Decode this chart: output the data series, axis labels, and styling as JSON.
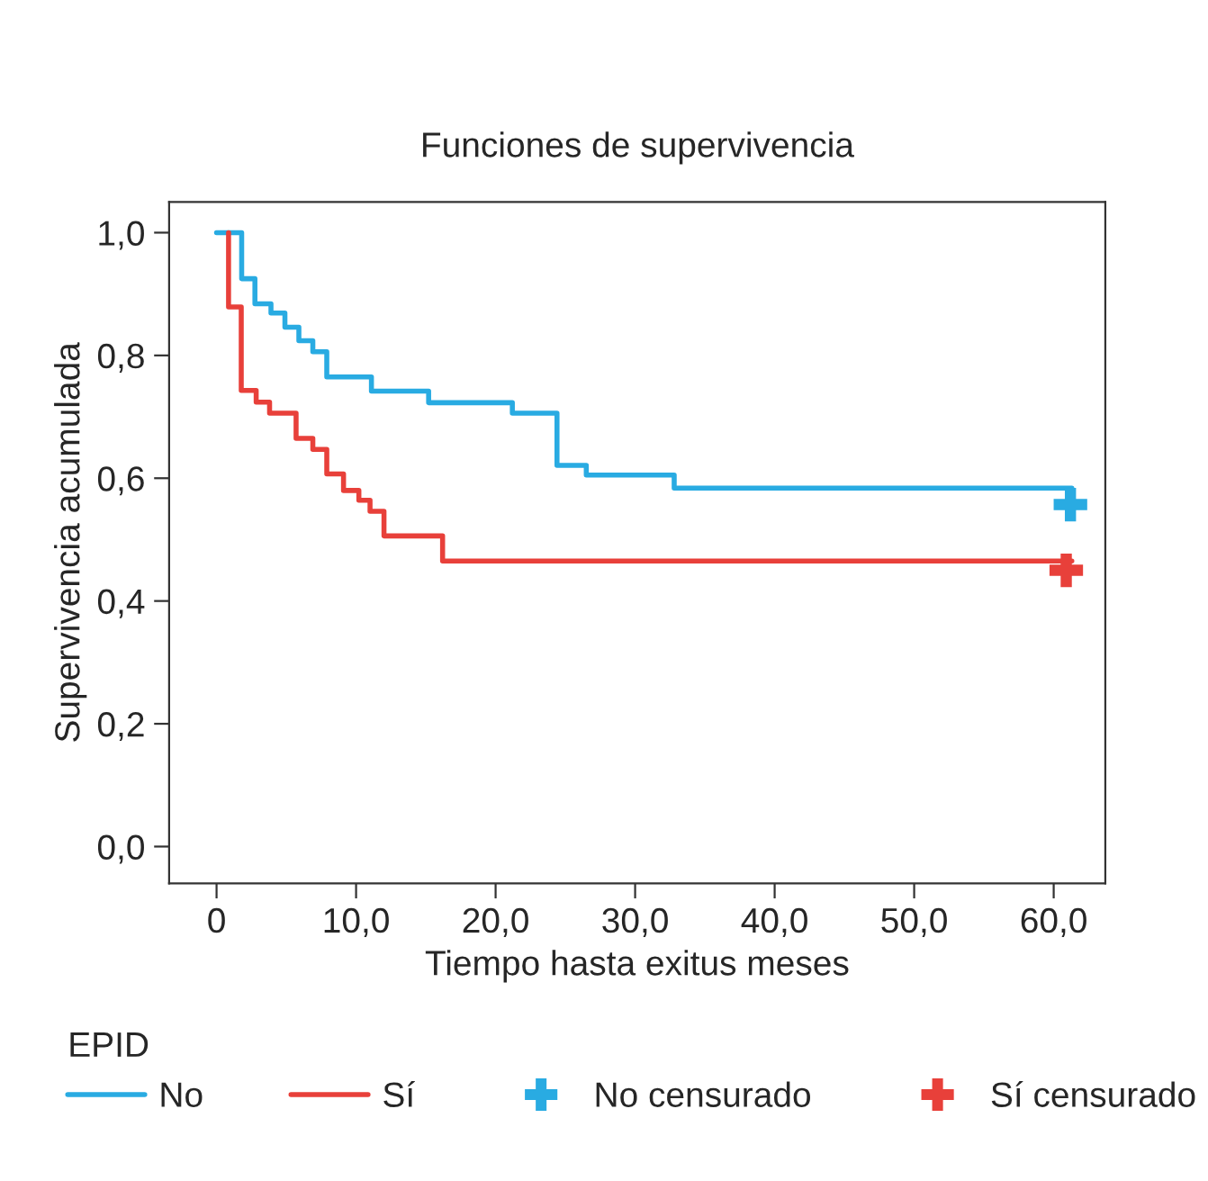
{
  "chart_data": {
    "type": "step",
    "title": "Funciones de supervivencia",
    "xlabel": "Tiempo hasta exitus meses",
    "ylabel": "Supervivencia acumulada",
    "legend_title": "EPID",
    "legend": "bottom",
    "grid": false,
    "xlim": [
      -3.4,
      63.7
    ],
    "ylim": [
      -0.06,
      1.05
    ],
    "xticks": [
      0,
      {
        "value": 10,
        "label": "10,0"
      },
      {
        "value": 20,
        "label": "20,0"
      },
      {
        "value": 30,
        "label": "30,0"
      },
      {
        "value": 40,
        "label": "40,0"
      },
      {
        "value": 50,
        "label": "50,0"
      },
      {
        "value": 60,
        "label": "60,0"
      }
    ],
    "yticks": [
      {
        "value": 0,
        "label": "0,0"
      },
      {
        "value": 0.2,
        "label": "0,2"
      },
      {
        "value": 0.4,
        "label": "0,4"
      },
      {
        "value": 0.6,
        "label": "0,6"
      },
      {
        "value": 0.8,
        "label": "0,8"
      },
      {
        "value": 1.0,
        "label": "1,0"
      }
    ],
    "series": [
      {
        "name": "No",
        "color": "#29abe2",
        "x": [
          0,
          1.8,
          2.75,
          3.9,
          4.9,
          5.9,
          6.9,
          7.9,
          11.1,
          15.2,
          21.2,
          24.4,
          26.5,
          32.8,
          61.3
        ],
        "values": [
          1.0,
          0.925,
          0.884,
          0.869,
          0.846,
          0.824,
          0.806,
          0.765,
          0.742,
          0.723,
          0.706,
          0.621,
          0.605,
          0.584,
          0.584
        ]
      },
      {
        "name": "Sí",
        "color": "#e8403a",
        "x": [
          0.86,
          0.86,
          1.77,
          2.84,
          3.8,
          5.7,
          6.9,
          7.9,
          9.1,
          10.2,
          11.0,
          12.0,
          16.2,
          61.3
        ],
        "values": [
          1.0,
          0.879,
          0.743,
          0.724,
          0.706,
          0.665,
          0.647,
          0.607,
          0.58,
          0.564,
          0.546,
          0.506,
          0.465,
          0.465
        ]
      },
      {
        "name": "No censurado",
        "type": "scatter",
        "marker": "cross",
        "color": "#29abe2",
        "x": [
          61.2
        ],
        "values": [
          0.557
        ]
      },
      {
        "name": "Sí censurado",
        "type": "scatter",
        "marker": "cross",
        "color": "#e8403a",
        "x": [
          60.9
        ],
        "values": [
          0.45
        ]
      }
    ]
  }
}
